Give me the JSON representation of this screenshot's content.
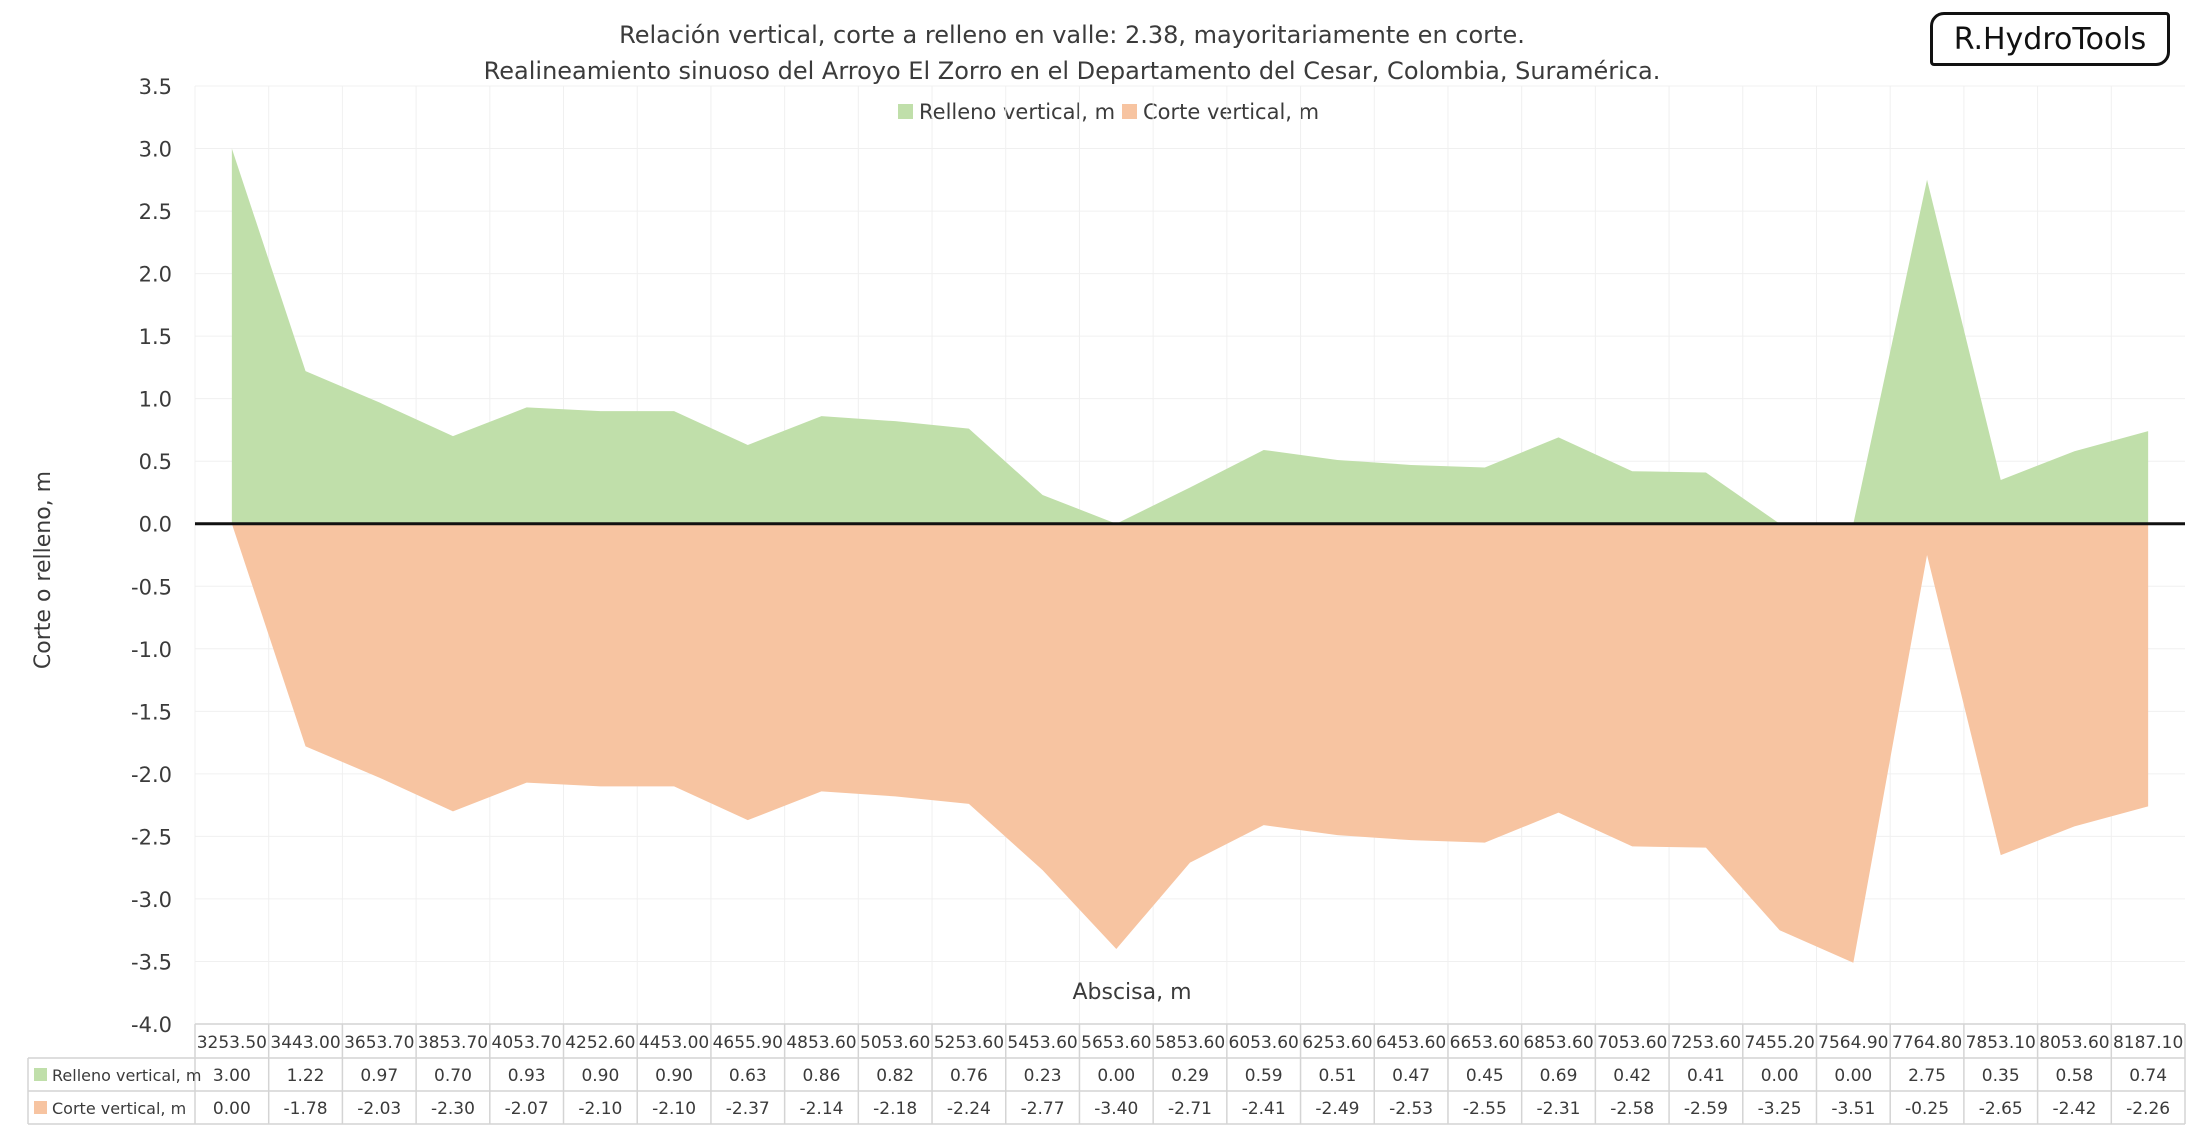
{
  "chart_data": {
    "type": "area",
    "title": "Relación vertical, corte a relleno en valle: 2.38, mayoritariamente en corte.",
    "subtitle": "Realineamiento sinuoso del Arroyo El Zorro en el Departamento del Cesar, Colombia, Suramérica.",
    "xlabel": "Abscisa, m",
    "ylabel": "Corte o relleno, m",
    "ylim": [
      -4.0,
      3.5
    ],
    "y_ticks": [
      "3.5",
      "3.0",
      "2.5",
      "2.0",
      "1.5",
      "1.0",
      "0.5",
      "0.0",
      "-0.5",
      "-1.0",
      "-1.5",
      "-2.0",
      "-2.5",
      "-3.0",
      "-3.5",
      "-4.0"
    ],
    "legend_position": "top-center",
    "grid": true,
    "categories": [
      "3253.50",
      "3443.00",
      "3653.70",
      "3853.70",
      "4053.70",
      "4252.60",
      "4453.00",
      "4655.90",
      "4853.60",
      "5053.60",
      "5253.60",
      "5453.60",
      "5653.60",
      "5853.60",
      "6053.60",
      "6253.60",
      "6453.60",
      "6653.60",
      "6853.60",
      "7053.60",
      "7253.60",
      "7455.20",
      "7564.90",
      "7764.80",
      "7853.10",
      "8053.60",
      "8187.10"
    ],
    "series": [
      {
        "name": "Relleno vertical, m",
        "color": "#c0dfaa",
        "values": [
          3.0,
          1.22,
          0.97,
          0.7,
          0.93,
          0.9,
          0.9,
          0.63,
          0.86,
          0.82,
          0.76,
          0.23,
          0.0,
          0.29,
          0.59,
          0.51,
          0.47,
          0.45,
          0.69,
          0.42,
          0.41,
          0.0,
          0.0,
          2.75,
          0.35,
          0.58,
          0.74
        ]
      },
      {
        "name": "Corte vertical, m",
        "color": "#f7c4a1",
        "values": [
          0.0,
          -1.78,
          -2.03,
          -2.3,
          -2.07,
          -2.1,
          -2.1,
          -2.37,
          -2.14,
          -2.18,
          -2.24,
          -2.77,
          -3.4,
          -2.71,
          -2.41,
          -2.49,
          -2.53,
          -2.55,
          -2.31,
          -2.58,
          -2.59,
          -3.25,
          -3.51,
          -0.25,
          -2.65,
          -2.42,
          -2.26
        ]
      }
    ]
  },
  "brand_label": "R.HydroTools"
}
